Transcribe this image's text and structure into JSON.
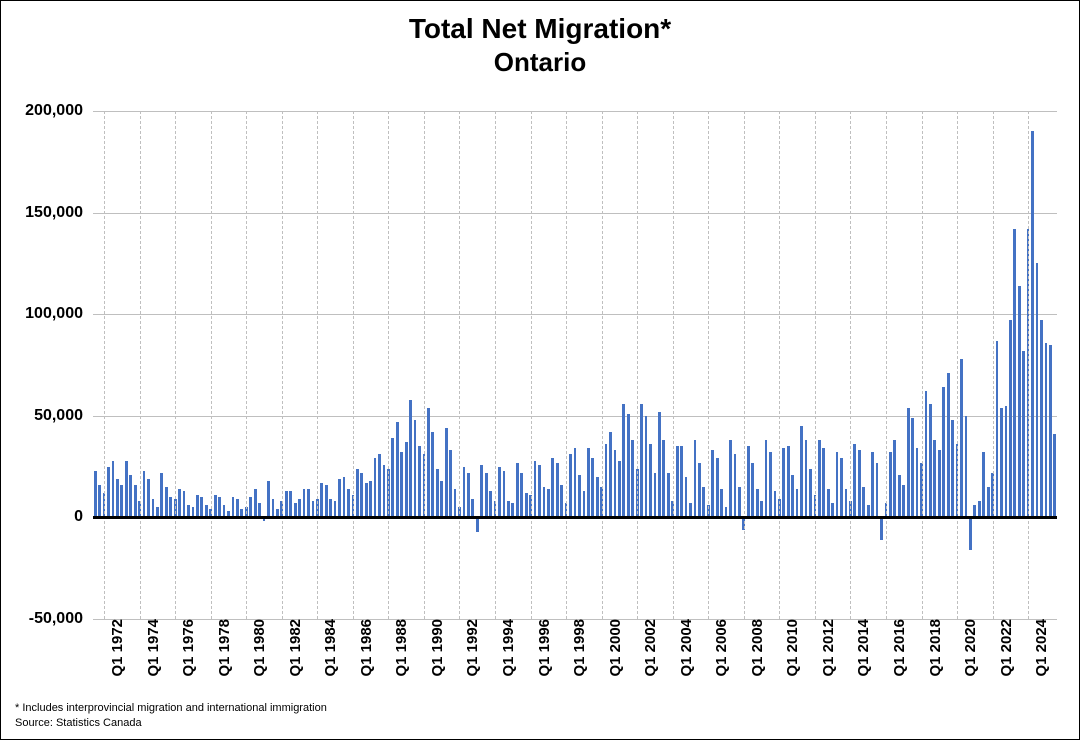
{
  "title_line1": "Total Net Migration*",
  "title_line2": "Ontario",
  "footnote1": "* Includes interprovincial migration and international immigration",
  "footnote2": "Source: Statistics Canada",
  "chart": {
    "type": "bar",
    "ylim": [
      -50000,
      200000
    ],
    "ytick_step": 50000,
    "y_ticks": [
      -50000,
      0,
      50000,
      100000,
      150000,
      200000
    ],
    "y_tick_labels": [
      "-50,000",
      "0",
      "50,000",
      "100,000",
      "150,000",
      "200,000"
    ],
    "x_labels_shown": [
      "Q1 1972",
      "Q1 1974",
      "Q1 1976",
      "Q1 1978",
      "Q1 1980",
      "Q1 1982",
      "Q1 1984",
      "Q1 1986",
      "Q1 1988",
      "Q1 1990",
      "Q1 1992",
      "Q1 1994",
      "Q1 1996",
      "Q1 1998",
      "Q1 2000",
      "Q1 2002",
      "Q1 2004",
      "Q1 2006",
      "Q1 2008",
      "Q1 2010",
      "Q1 2012",
      "Q1 2014",
      "Q1 2016",
      "Q1 2018",
      "Q1 2020",
      "Q1 2022",
      "Q1 2024"
    ],
    "x_label_period_quarters": 8,
    "bar_color": "#4472c4",
    "background_color": "#ffffff",
    "grid_color_h": "#bfbfbf",
    "grid_color_v": "#bfbfbf",
    "zero_line_color": "#000000",
    "bar_width_ratio": 0.62,
    "title_fontsize": 28,
    "label_fontsize": 16,
    "x_label_fontsize": 15,
    "x_label_rotation": -90,
    "start_year": 1971,
    "start_quarter": 3,
    "values": [
      23000,
      16000,
      12000,
      25000,
      28000,
      19000,
      16000,
      28000,
      21000,
      16000,
      8000,
      23000,
      19000,
      9000,
      5000,
      22000,
      15000,
      10000,
      9000,
      14000,
      13000,
      6000,
      5000,
      11000,
      10000,
      6000,
      4000,
      11000,
      10000,
      6000,
      3000,
      10000,
      9000,
      4000,
      5000,
      10000,
      14000,
      7000,
      -2000,
      18000,
      9000,
      4000,
      8000,
      13000,
      13000,
      7000,
      9000,
      14000,
      14000,
      8000,
      9000,
      17000,
      16000,
      9000,
      8000,
      19000,
      20000,
      14000,
      11000,
      24000,
      22000,
      17000,
      18000,
      29000,
      31000,
      26000,
      24000,
      39000,
      47000,
      32000,
      37000,
      58000,
      48000,
      35000,
      31000,
      54000,
      42000,
      24000,
      18000,
      44000,
      33000,
      14000,
      5000,
      25000,
      22000,
      9000,
      -7000,
      26000,
      22000,
      13000,
      8000,
      25000,
      23000,
      8000,
      7000,
      27000,
      22000,
      12000,
      11000,
      28000,
      26000,
      15000,
      14000,
      29000,
      27000,
      16000,
      7000,
      31000,
      34000,
      21000,
      13000,
      34000,
      29000,
      20000,
      15000,
      36000,
      42000,
      33000,
      28000,
      56000,
      51000,
      38000,
      24000,
      56000,
      50000,
      36000,
      22000,
      52000,
      38000,
      22000,
      8000,
      35000,
      35000,
      20000,
      7000,
      38000,
      27000,
      15000,
      6000,
      33000,
      29000,
      14000,
      5000,
      38000,
      31000,
      15000,
      -6000,
      35000,
      27000,
      14000,
      8000,
      38000,
      32000,
      13000,
      9000,
      34000,
      35000,
      21000,
      14000,
      45000,
      38000,
      24000,
      11000,
      38000,
      34000,
      14000,
      7000,
      32000,
      29000,
      14000,
      8000,
      36000,
      33000,
      15000,
      6000,
      32000,
      27000,
      -11000,
      7000,
      32000,
      38000,
      21000,
      16000,
      54000,
      49000,
      34000,
      27000,
      62000,
      56000,
      38000,
      33000,
      64000,
      71000,
      48000,
      36000,
      78000,
      50000,
      -16000,
      6000,
      8000,
      32000,
      15000,
      22000,
      87000,
      54000,
      55000,
      97000,
      142000,
      114000,
      82000,
      142000,
      190000,
      125000,
      97000,
      86000,
      85000,
      41000
    ]
  }
}
